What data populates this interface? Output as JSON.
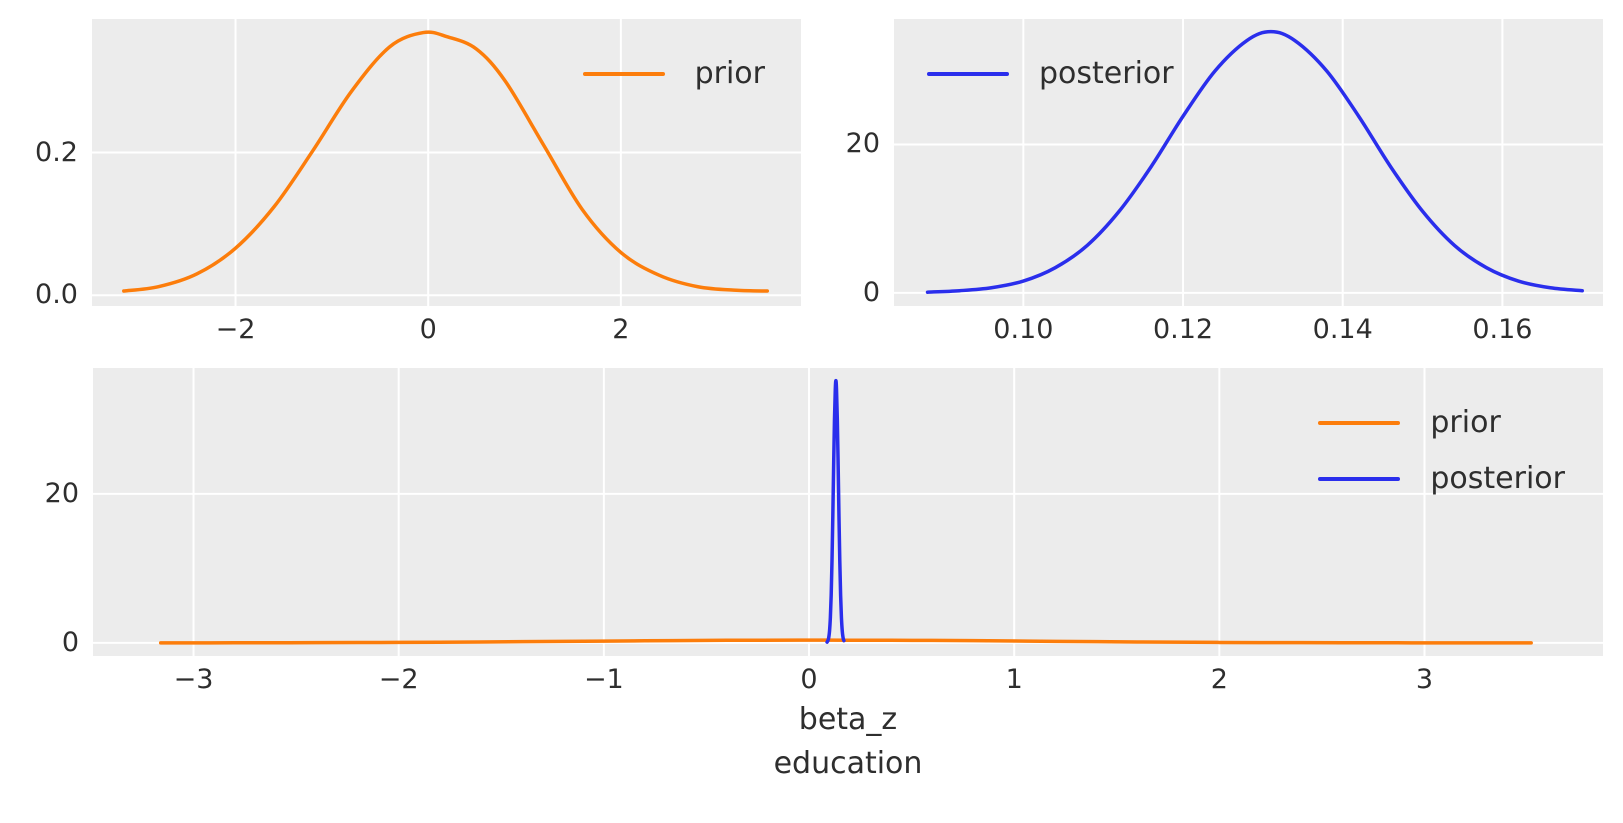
{
  "figure": {
    "background": "#ffffff",
    "plot_background": "#ececec",
    "grid_color": "#ffffff",
    "text_color": "#2e2e2e",
    "colors": {
      "prior": "#fc7d0b",
      "posterior": "#2a2eec"
    }
  },
  "chart_data": [
    {
      "id": "prior-marginal",
      "type": "line",
      "kind": "kde",
      "title": "",
      "xlabel": "",
      "ylabel": "",
      "grid": true,
      "xlim": [
        -3.49,
        3.87
      ],
      "ylim": [
        -0.015,
        0.387
      ],
      "xticks": {
        "values": [
          -2,
          0,
          2
        ],
        "labels": [
          "−2",
          "0",
          "2"
        ]
      },
      "yticks": {
        "values": [
          0,
          0.2
        ],
        "labels": [
          "0.0",
          "0.2"
        ]
      },
      "legend": {
        "position": "upper-right",
        "entries": [
          {
            "label": "prior",
            "color": "#fc7d0b"
          }
        ]
      },
      "series": [
        {
          "name": "prior",
          "color": "#fc7d0b",
          "x": [
            -3.16,
            -2.8,
            -2.4,
            -2.0,
            -1.6,
            -1.2,
            -0.8,
            -0.4,
            -0.05,
            0.2,
            0.5,
            0.8,
            1.2,
            1.6,
            2.0,
            2.4,
            2.8,
            3.2,
            3.52
          ],
          "y": [
            0.006,
            0.012,
            0.03,
            0.066,
            0.124,
            0.202,
            0.285,
            0.348,
            0.368,
            0.362,
            0.345,
            0.3,
            0.21,
            0.12,
            0.06,
            0.028,
            0.012,
            0.007,
            0.006
          ]
        }
      ]
    },
    {
      "id": "posterior-marginal",
      "type": "line",
      "kind": "kde",
      "title": "",
      "xlabel": "",
      "ylabel": "",
      "grid": true,
      "xlim": [
        0.0838,
        0.1726
      ],
      "ylim": [
        -1.76,
        36.9
      ],
      "xticks": {
        "values": [
          0.1,
          0.12,
          0.14,
          0.16
        ],
        "labels": [
          "0.10",
          "0.12",
          "0.14",
          "0.16"
        ]
      },
      "yticks": {
        "values": [
          0,
          20
        ],
        "labels": [
          "0",
          "20"
        ]
      },
      "legend": {
        "position": "upper-left",
        "entries": [
          {
            "label": "posterior",
            "color": "#2a2eec"
          }
        ]
      },
      "series": [
        {
          "name": "posterior",
          "color": "#2a2eec",
          "x": [
            0.088,
            0.092,
            0.096,
            0.1,
            0.104,
            0.108,
            0.112,
            0.116,
            0.12,
            0.124,
            0.128,
            0.131,
            0.134,
            0.138,
            0.142,
            0.146,
            0.15,
            0.154,
            0.158,
            0.162,
            0.166,
            0.17
          ],
          "y": [
            0.1,
            0.3,
            0.7,
            1.6,
            3.4,
            6.4,
            11.0,
            17.0,
            23.8,
            29.9,
            34.0,
            35.2,
            34.0,
            29.9,
            23.8,
            17.0,
            11.0,
            6.4,
            3.4,
            1.6,
            0.7,
            0.3
          ]
        }
      ]
    },
    {
      "id": "prior-posterior-overlay",
      "type": "line",
      "kind": "kde",
      "title": "",
      "xlabel": "beta_z\neducation",
      "xlabel_lines": [
        "beta_z",
        "education"
      ],
      "ylabel": "",
      "grid": true,
      "xlim": [
        -3.49,
        3.87
      ],
      "ylim": [
        -1.76,
        36.9
      ],
      "xticks": {
        "values": [
          -3,
          -2,
          -1,
          0,
          1,
          2,
          3
        ],
        "labels": [
          "−3",
          "−2",
          "−1",
          "0",
          "1",
          "2",
          "3"
        ]
      },
      "yticks": {
        "values": [
          0,
          20
        ],
        "labels": [
          "0",
          "20"
        ]
      },
      "legend": {
        "position": "upper-right",
        "entries": [
          {
            "label": "prior",
            "color": "#fc7d0b"
          },
          {
            "label": "posterior",
            "color": "#2a2eec"
          }
        ]
      },
      "series": [
        {
          "name": "prior",
          "color": "#fc7d0b",
          "x": [
            -3.16,
            -2.8,
            -2.4,
            -2.0,
            -1.6,
            -1.2,
            -0.8,
            -0.4,
            -0.05,
            0.2,
            0.5,
            0.8,
            1.2,
            1.6,
            2.0,
            2.4,
            2.8,
            3.2,
            3.52
          ],
          "y": [
            0.006,
            0.012,
            0.03,
            0.066,
            0.124,
            0.202,
            0.285,
            0.348,
            0.368,
            0.362,
            0.345,
            0.3,
            0.21,
            0.12,
            0.06,
            0.028,
            0.012,
            0.007,
            0.006
          ]
        },
        {
          "name": "posterior",
          "color": "#2a2eec",
          "x": [
            0.088,
            0.092,
            0.096,
            0.1,
            0.104,
            0.108,
            0.112,
            0.116,
            0.12,
            0.124,
            0.128,
            0.131,
            0.134,
            0.138,
            0.142,
            0.146,
            0.15,
            0.154,
            0.158,
            0.162,
            0.166,
            0.17
          ],
          "y": [
            0.1,
            0.3,
            0.7,
            1.6,
            3.4,
            6.4,
            11.0,
            17.0,
            23.8,
            29.9,
            34.0,
            35.2,
            34.0,
            29.9,
            23.8,
            17.0,
            11.0,
            6.4,
            3.4,
            1.6,
            0.7,
            0.3
          ]
        }
      ]
    }
  ]
}
